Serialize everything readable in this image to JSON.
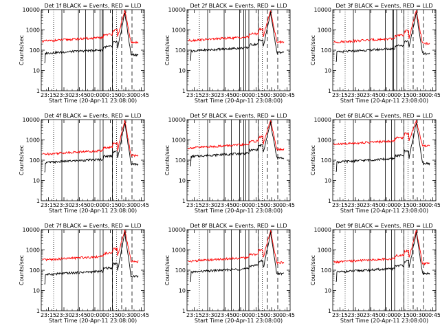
{
  "chart_data": [
    {
      "type": "line",
      "title": "Det 1f BLACK = Events, RED = LLD",
      "xlabel": "Start Time (20-Apr-11 23:08:00)",
      "ylabel": "Counts/sec",
      "yscale": "log",
      "ylim": [
        1,
        10000
      ],
      "xlim": [
        "23:08",
        "00:48"
      ],
      "xticks": [
        "23:15",
        "23:30",
        "23:45",
        "00:00",
        "00:15",
        "00:30",
        "00:45"
      ],
      "yticks": [
        "1",
        "10",
        "100",
        "1000",
        "10000"
      ],
      "events_start": "23:11",
      "black_base": 70,
      "red_base": 280,
      "peak_black": 7000,
      "peak_red": 9000,
      "solid_lines": [
        "23:28",
        "23:44",
        "23:51",
        "23:59",
        "00:05",
        "00:07",
        "00:08",
        "00:17"
      ],
      "dotted_lines": [
        "23:20",
        "00:21"
      ],
      "dashed_lines": [
        "00:17",
        "00:26",
        "00:36"
      ],
      "series": [
        {
          "name": "BLACK = Events",
          "color": "#000000"
        },
        {
          "name": "RED = LLD",
          "color": "#ff0000"
        }
      ]
    },
    {
      "type": "line",
      "title": "Det 2f BLACK = Events, RED = LLD",
      "xlabel": "Start Time (20-Apr-11 23:08:00)",
      "ylabel": "Counts/sec",
      "yscale": "log",
      "ylim": [
        1,
        10000
      ],
      "xlim": [
        "23:08",
        "00:48"
      ],
      "xticks": [
        "23:15",
        "23:30",
        "23:45",
        "00:00",
        "00:15",
        "00:30",
        "00:45"
      ],
      "yticks": [
        "1",
        "10",
        "100",
        "1000",
        "10000"
      ],
      "events_start": "23:11",
      "black_base": 90,
      "red_base": 300,
      "peak_black": 7000,
      "peak_red": 9000,
      "solid_lines": [
        "23:28",
        "23:44",
        "23:59",
        "00:03",
        "00:05",
        "00:08",
        "00:17"
      ],
      "dotted_lines": [
        "23:20",
        "00:21"
      ],
      "dashed_lines": [
        "00:17",
        "00:26",
        "00:36"
      ],
      "series": [
        {
          "name": "BLACK = Events",
          "color": "#000000"
        },
        {
          "name": "RED = LLD",
          "color": "#ff0000"
        }
      ]
    },
    {
      "type": "line",
      "title": "Det 3f BLACK = Events, RED = LLD",
      "xlabel": "Start Time (20-Apr-11 23:08:00)",
      "ylabel": "Counts/sec",
      "yscale": "log",
      "ylim": [
        1,
        10000
      ],
      "xlim": [
        "23:08",
        "00:48"
      ],
      "xticks": [
        "23:15",
        "23:30",
        "23:45",
        "00:00",
        "00:15",
        "00:30",
        "00:45"
      ],
      "yticks": [
        "1",
        "10",
        "100",
        "1000",
        "10000"
      ],
      "events_start": "23:11",
      "black_base": 80,
      "red_base": 250,
      "peak_black": 7000,
      "peak_red": 9000,
      "solid_lines": [
        "23:28",
        "23:44",
        "23:59",
        "00:06",
        "00:07",
        "00:10",
        "00:17"
      ],
      "dotted_lines": [
        "23:20",
        "00:21"
      ],
      "dashed_lines": [
        "00:17",
        "00:26",
        "00:36"
      ],
      "series": [
        {
          "name": "BLACK = Events",
          "color": "#000000"
        },
        {
          "name": "RED = LLD",
          "color": "#ff0000"
        }
      ]
    },
    {
      "type": "line",
      "title": "Det 4f BLACK = Events, RED = LLD",
      "xlabel": "Start Time (20-Apr-11 23:08:00)",
      "ylabel": "Counts/sec",
      "yscale": "log",
      "ylim": [
        1,
        10000
      ],
      "xlim": [
        "23:08",
        "00:48"
      ],
      "xticks": [
        "23:15",
        "23:30",
        "23:45",
        "00:00",
        "00:15",
        "00:30",
        "00:45"
      ],
      "yticks": [
        "1",
        "10",
        "100",
        "1000",
        "10000"
      ],
      "events_start": "23:11",
      "black_base": 75,
      "red_base": 200,
      "peak_black": 7000,
      "peak_red": 9000,
      "solid_lines": [
        "23:28",
        "23:44",
        "23:59",
        "00:05",
        "00:08",
        "00:17"
      ],
      "dotted_lines": [
        "23:20",
        "00:21"
      ],
      "dashed_lines": [
        "00:17",
        "00:26",
        "00:36"
      ],
      "series": [
        {
          "name": "BLACK = Events",
          "color": "#000000"
        },
        {
          "name": "RED = LLD",
          "color": "#ff0000"
        }
      ]
    },
    {
      "type": "line",
      "title": "Det 5f BLACK = Events, RED = LLD",
      "xlabel": "Start Time (20-Apr-11 23:08:00)",
      "ylabel": "Counts/sec",
      "yscale": "log",
      "ylim": [
        1,
        10000
      ],
      "xlim": [
        "23:08",
        "00:48"
      ],
      "xticks": [
        "23:15",
        "23:30",
        "23:45",
        "00:00",
        "00:15",
        "00:30",
        "00:45"
      ],
      "yticks": [
        "1",
        "10",
        "100",
        "1000",
        "10000"
      ],
      "events_start": "23:11",
      "black_base": 150,
      "red_base": 400,
      "peak_black": 7000,
      "peak_red": 9000,
      "solid_lines": [
        "23:28",
        "23:44",
        "23:51",
        "23:59",
        "00:03",
        "00:05",
        "00:08",
        "00:17"
      ],
      "dotted_lines": [
        "23:20",
        "00:21"
      ],
      "dashed_lines": [
        "00:17",
        "00:26",
        "00:36"
      ],
      "series": [
        {
          "name": "BLACK = Events",
          "color": "#000000"
        },
        {
          "name": "RED = LLD",
          "color": "#ff0000"
        }
      ]
    },
    {
      "type": "line",
      "title": "Det 6f BLACK = Events, RED = LLD",
      "xlabel": "Start Time (20-Apr-11 23:08:00)",
      "ylabel": "Counts/sec",
      "yscale": "log",
      "ylim": [
        1,
        10000
      ],
      "xlim": [
        "23:08",
        "00:48"
      ],
      "xticks": [
        "23:15",
        "23:30",
        "23:45",
        "00:00",
        "00:15",
        "00:30",
        "00:45"
      ],
      "yticks": [
        "1",
        "10",
        "100",
        "1000",
        "10000"
      ],
      "events_start": "23:11",
      "black_base": 80,
      "red_base": 600,
      "peak_black": 7000,
      "peak_red": 9000,
      "solid_lines": [
        "23:28",
        "23:44",
        "23:59",
        "00:05",
        "00:08",
        "00:17"
      ],
      "dotted_lines": [
        "23:20",
        "00:21"
      ],
      "dashed_lines": [
        "00:17",
        "00:26",
        "00:36"
      ],
      "series": [
        {
          "name": "BLACK = Events",
          "color": "#000000"
        },
        {
          "name": "RED = LLD",
          "color": "#ff0000"
        }
      ]
    },
    {
      "type": "line",
      "title": "Det 7f BLACK = Events, RED = LLD",
      "xlabel": "Start Time (20-Apr-11 23:08:00)",
      "ylabel": "Counts/sec",
      "yscale": "log",
      "ylim": [
        1,
        10000
      ],
      "xlim": [
        "23:08",
        "00:48"
      ],
      "xticks": [
        "23:15",
        "23:30",
        "23:45",
        "00:00",
        "00:15",
        "00:30",
        "00:45"
      ],
      "yticks": [
        "1",
        "10",
        "100",
        "1000",
        "10000"
      ],
      "events_start": "23:11",
      "black_base": 60,
      "red_base": 320,
      "peak_black": 7000,
      "peak_red": 9000,
      "solid_lines": [
        "23:28",
        "23:44",
        "23:59",
        "00:05",
        "00:08",
        "00:17"
      ],
      "dotted_lines": [
        "23:20",
        "00:21"
      ],
      "dashed_lines": [
        "00:17",
        "00:26",
        "00:36"
      ],
      "series": [
        {
          "name": "BLACK = Events",
          "color": "#000000"
        },
        {
          "name": "RED = LLD",
          "color": "#ff0000"
        }
      ]
    },
    {
      "type": "line",
      "title": "Det 8f BLACK = Events, RED = LLD",
      "xlabel": "Start Time (20-Apr-11 23:08:00)",
      "ylabel": "Counts/sec",
      "yscale": "log",
      "ylim": [
        1,
        10000
      ],
      "xlim": [
        "23:08",
        "00:48"
      ],
      "xticks": [
        "23:15",
        "23:30",
        "23:45",
        "00:00",
        "00:15",
        "00:30",
        "00:45"
      ],
      "yticks": [
        "1",
        "10",
        "100",
        "1000",
        "10000"
      ],
      "events_start": "23:11",
      "black_base": 80,
      "red_base": 280,
      "peak_black": 7000,
      "peak_red": 9000,
      "solid_lines": [
        "23:28",
        "23:44",
        "23:51",
        "23:59",
        "00:05",
        "00:08",
        "00:17"
      ],
      "dotted_lines": [
        "23:20",
        "00:21"
      ],
      "dashed_lines": [
        "00:17",
        "00:26",
        "00:36"
      ],
      "series": [
        {
          "name": "BLACK = Events",
          "color": "#000000"
        },
        {
          "name": "RED = LLD",
          "color": "#ff0000"
        }
      ]
    },
    {
      "type": "line",
      "title": "Det 9f BLACK = Events, RED = LLD",
      "xlabel": "Start Time (20-Apr-11 23:08:00)",
      "ylabel": "Counts/sec",
      "yscale": "log",
      "ylim": [
        1,
        10000
      ],
      "xlim": [
        "23:08",
        "00:48"
      ],
      "xticks": [
        "23:15",
        "23:30",
        "23:45",
        "00:00",
        "00:15",
        "00:30",
        "00:45"
      ],
      "yticks": [
        "1",
        "10",
        "100",
        "1000",
        "10000"
      ],
      "events_start": "23:11",
      "black_base": 80,
      "red_base": 250,
      "peak_black": 7000,
      "peak_red": 9000,
      "solid_lines": [
        "23:28",
        "23:44",
        "23:59",
        "00:05",
        "00:08",
        "00:17"
      ],
      "dotted_lines": [
        "23:20",
        "00:21"
      ],
      "dashed_lines": [
        "00:17",
        "00:26",
        "00:36"
      ],
      "series": [
        {
          "name": "BLACK = Events",
          "color": "#000000"
        },
        {
          "name": "RED = LLD",
          "color": "#ff0000"
        }
      ]
    }
  ]
}
